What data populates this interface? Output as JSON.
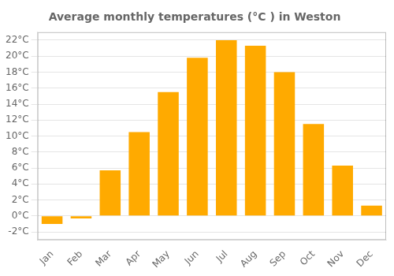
{
  "chart_data": {
    "type": "bar",
    "title": "Average monthly temperatures (°C ) in Weston",
    "categories": [
      "Jan",
      "Feb",
      "Mar",
      "Apr",
      "May",
      "Jun",
      "Jul",
      "Aug",
      "Sep",
      "Oct",
      "Nov",
      "Dec"
    ],
    "values": [
      -1.0,
      -0.3,
      5.7,
      10.5,
      15.5,
      19.8,
      22.0,
      21.3,
      18.0,
      11.5,
      6.3,
      1.3
    ],
    "color": "#FFAA00",
    "ylim": [
      -3,
      23
    ],
    "yticks": [
      {
        "value": -2,
        "label": "-2°C"
      },
      {
        "value": 0,
        "label": "0°C"
      },
      {
        "value": 2,
        "label": "2°C"
      },
      {
        "value": 4,
        "label": "4°C"
      },
      {
        "value": 6,
        "label": "6°C"
      },
      {
        "value": 8,
        "label": "8°C"
      },
      {
        "value": 10,
        "label": "10°C"
      },
      {
        "value": 12,
        "label": "12°C"
      },
      {
        "value": 14,
        "label": "14°C"
      },
      {
        "value": 16,
        "label": "16°C"
      },
      {
        "value": 18,
        "label": "18°C"
      },
      {
        "value": 20,
        "label": "20°C"
      },
      {
        "value": 22,
        "label": "22°C"
      }
    ],
    "grid": true
  }
}
